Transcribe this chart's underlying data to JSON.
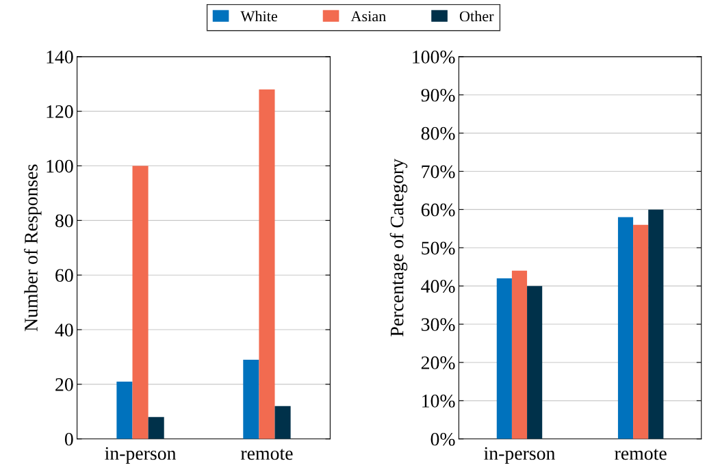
{
  "chart_data": [
    {
      "type": "bar",
      "ylabel": "Number of Responses",
      "categories": [
        "in-person",
        "remote"
      ],
      "series": [
        {
          "name": "White",
          "color": "#0072bd",
          "values": [
            21,
            29
          ]
        },
        {
          "name": "Asian",
          "color": "#f26b50",
          "values": [
            100,
            128
          ]
        },
        {
          "name": "Other",
          "color": "#00314a",
          "values": [
            8,
            12
          ]
        }
      ],
      "ylim": [
        0,
        140
      ],
      "yticks": [
        0,
        20,
        40,
        60,
        80,
        100,
        120,
        140
      ],
      "grid": "y",
      "legend": "top"
    },
    {
      "type": "bar",
      "ylabel": "Percentage of Category",
      "categories": [
        "in-person",
        "remote"
      ],
      "series": [
        {
          "color": "#0072bd",
          "values": [
            42,
            58
          ]
        },
        {
          "color": "#f26b50",
          "values": [
            44,
            56
          ]
        },
        {
          "color": "#00314a",
          "values": [
            40,
            60
          ]
        }
      ],
      "ylim": [
        0,
        100
      ],
      "yticks": [
        {
          "value": 0,
          "label": "0%"
        },
        {
          "value": 10,
          "label": "10%"
        },
        {
          "value": 20,
          "label": "20%"
        },
        {
          "value": 30,
          "label": "30%"
        },
        {
          "value": 40,
          "label": "40%"
        },
        {
          "value": 50,
          "label": "50%"
        },
        {
          "value": 60,
          "label": "60%"
        },
        {
          "value": 70,
          "label": "70%"
        },
        {
          "value": 80,
          "label": "80%"
        },
        {
          "value": 90,
          "label": "90%"
        },
        {
          "value": 100,
          "label": "100%"
        }
      ],
      "grid": "y"
    }
  ]
}
